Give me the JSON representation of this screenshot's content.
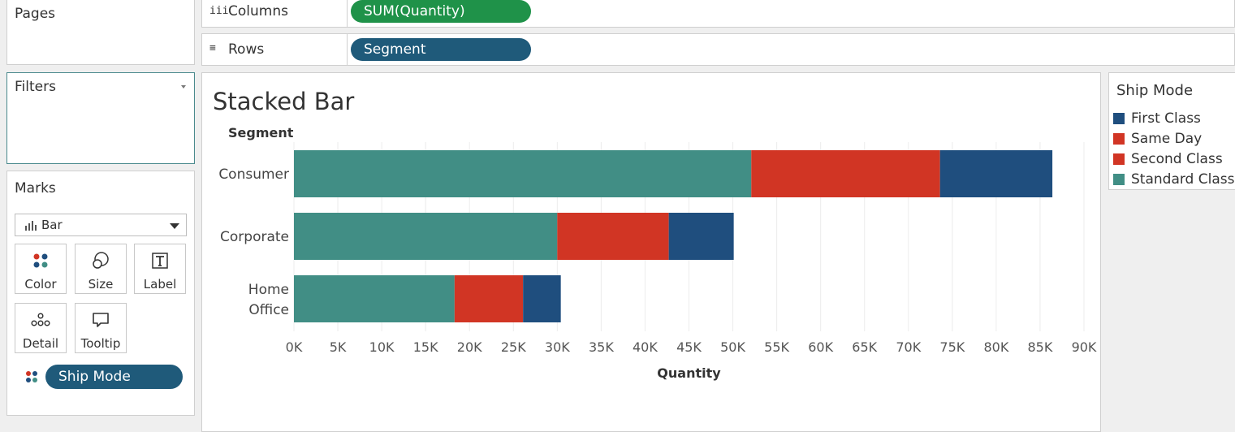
{
  "pages": {
    "title": "Pages"
  },
  "filters": {
    "title": "Filters"
  },
  "marks": {
    "title": "Marks",
    "mark_type": "Bar",
    "buttons": [
      {
        "label": "Color",
        "icon": "color-dots-icon"
      },
      {
        "label": "Size",
        "icon": "size-circles-icon"
      },
      {
        "label": "Label",
        "icon": "text-label-icon"
      },
      {
        "label": "Detail",
        "icon": "detail-dots-icon"
      },
      {
        "label": "Tooltip",
        "icon": "tooltip-bubble-icon"
      }
    ],
    "color_pill": "Ship Mode"
  },
  "shelves": {
    "columns_label": "Columns",
    "columns_pill": "SUM(Quantity)",
    "rows_label": "Rows",
    "rows_pill": "Segment"
  },
  "legend": {
    "title": "Ship Mode",
    "items": [
      {
        "label": "First Class",
        "color": "#1f4e7e"
      },
      {
        "label": "Same Day",
        "color": "#d13524"
      },
      {
        "label": "Second Class",
        "color": "#d13524"
      },
      {
        "label": "Standard Class",
        "color": "#418e85"
      }
    ]
  },
  "colors": {
    "green_pill": "#1f9249",
    "blue_pill": "#1f5a7a",
    "filters_border": "#4a8a8d"
  },
  "chart_data": {
    "type": "bar",
    "orientation": "horizontal",
    "stacked": true,
    "title": "Stacked Bar",
    "row_header": "Segment",
    "xlabel": "Quantity",
    "categories": [
      "Consumer",
      "Corporate",
      "Home Office"
    ],
    "series": [
      {
        "name": "Standard Class",
        "color": "#418e85",
        "values": [
          52100,
          30000,
          18300
        ]
      },
      {
        "name": "Second Class",
        "color": "#d13524",
        "values": [
          21500,
          12700,
          7800
        ]
      },
      {
        "name": "First Class",
        "color": "#1f4e7e",
        "values": [
          12800,
          7400,
          4300
        ]
      }
    ],
    "xlim": [
      0,
      90000
    ],
    "xticks": [
      0,
      5000,
      10000,
      15000,
      20000,
      25000,
      30000,
      35000,
      40000,
      45000,
      50000,
      55000,
      60000,
      65000,
      70000,
      75000,
      80000,
      85000,
      90000
    ],
    "xtick_labels": [
      "0K",
      "5K",
      "10K",
      "15K",
      "20K",
      "25K",
      "30K",
      "35K",
      "40K",
      "45K",
      "50K",
      "55K",
      "60K",
      "65K",
      "70K",
      "75K",
      "80K",
      "85K",
      "90K"
    ],
    "grid": "vertical"
  }
}
